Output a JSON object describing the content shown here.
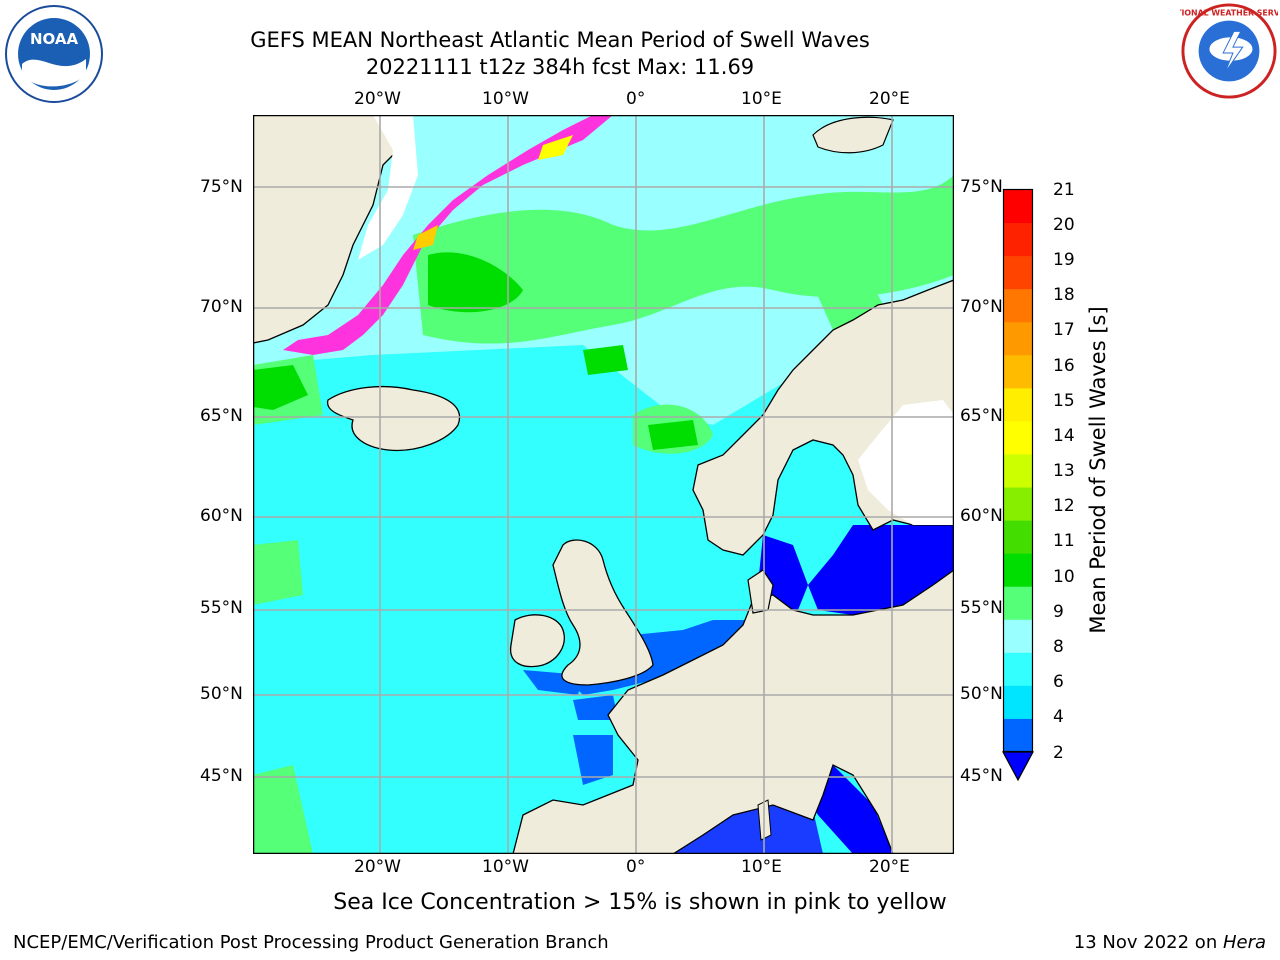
{
  "header": {
    "title_line1": "GEFS MEAN Northeast Atlantic Mean Period of Swell Waves",
    "title_line2": "20221111 t12z 384h fcst   Max: 11.69"
  },
  "logos": {
    "left": "NOAA",
    "right": "NATIONAL WEATHER SERVICE"
  },
  "map": {
    "lon_labels_top": [
      "20°W",
      "10°W",
      "0°",
      "10°E",
      "20°E"
    ],
    "lon_labels_bottom": [
      "20°W",
      "10°W",
      "0°",
      "10°E",
      "20°E"
    ],
    "lat_labels_left": [
      "75°N",
      "70°N",
      "65°N",
      "60°N",
      "55°N",
      "50°N",
      "45°N"
    ],
    "lat_labels_right": [
      "75°N",
      "70°N",
      "65°N",
      "60°N",
      "55°N",
      "50°N",
      "45°N"
    ],
    "colors": {
      "land": "#efecdb",
      "ocean_base": "#33ffff",
      "ice": "#ff33dd",
      "grid": "#aaaaaa"
    }
  },
  "colorbar": {
    "title": "Mean Period of Swell Waves [s]",
    "ticks": [
      "21",
      "20",
      "19",
      "18",
      "17",
      "16",
      "15",
      "14",
      "13",
      "12",
      "11",
      "10",
      "9",
      "8",
      "6",
      "4",
      "2"
    ],
    "colors_bottom_to_top": [
      "#0066ff",
      "#00e5ff",
      "#33ffff",
      "#99ffff",
      "#55ff77",
      "#00dd00",
      "#44dd00",
      "#88ee00",
      "#ccff00",
      "#ffff00",
      "#ffee00",
      "#ffbb00",
      "#ff9900",
      "#ff7700",
      "#ff4400",
      "#ff2200",
      "#ff0000"
    ],
    "extend_color": "#0000ff"
  },
  "footer": {
    "ice_note": "Sea Ice Concentration > 15% is shown in pink to yellow",
    "credit_left": "NCEP/EMC/Verification Post Processing Product Generation Branch",
    "credit_right_date": "13 Nov 2022 on ",
    "credit_right_host": "Hera"
  }
}
